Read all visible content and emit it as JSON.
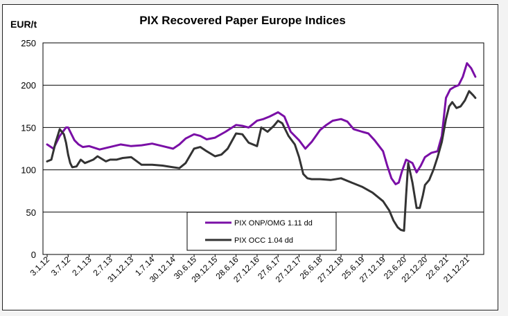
{
  "chart_data": {
    "type": "line",
    "title": "PIX Recovered Paper Europe Indices",
    "ylabel": "EUR/t",
    "xlabel": "",
    "ylim": [
      0,
      250
    ],
    "yticks": [
      0,
      50,
      100,
      150,
      200,
      250
    ],
    "grid": "horizontal",
    "legend_position": "bottom-center",
    "x_tick_labels": [
      "3.1.12",
      "3.7.12",
      "2.1.13",
      "2.7.13",
      "31.12.13",
      "1.7.14",
      "30.12.14",
      "30.6.15",
      "29.12.15",
      "28.6.16",
      "27.12.16",
      "27.6.17",
      "27.12.17",
      "26.6.18",
      "27.12.18",
      "25.6.19",
      "27.12.19",
      "23.6.20",
      "22.12.20",
      "22.6.21",
      "21.12.21"
    ],
    "series": [
      {
        "name": "PIX ONP/OMG 1.11 dd",
        "color": "#7a0fa6",
        "x": [
          0,
          0.3,
          0.6,
          0.9,
          1.0,
          1.1,
          1.3,
          1.5,
          1.7,
          2.0,
          2.5,
          3.0,
          3.5,
          4.0,
          4.5,
          5.0,
          5.5,
          6.0,
          6.3,
          6.6,
          7.0,
          7.3,
          7.6,
          8.0,
          8.5,
          9.0,
          9.3,
          9.6,
          10.0,
          10.3,
          10.6,
          11.0,
          11.3,
          11.6,
          12.0,
          12.3,
          12.6,
          13.0,
          13.3,
          13.6,
          14.0,
          14.3,
          14.6,
          15.0,
          15.3,
          15.6,
          16.0,
          16.2,
          16.4,
          16.6,
          16.75,
          16.9,
          17.1,
          17.4,
          17.6,
          17.8,
          18.0,
          18.3,
          18.6,
          18.8,
          19.0,
          19.2,
          19.4,
          19.6,
          19.8,
          20.0,
          20.2,
          20.4
        ],
        "values": [
          130,
          125,
          140,
          150,
          150,
          145,
          135,
          130,
          127,
          128,
          124,
          127,
          130,
          128,
          129,
          131,
          128,
          125,
          130,
          137,
          142,
          140,
          136,
          138,
          145,
          153,
          152,
          150,
          158,
          160,
          163,
          168,
          163,
          145,
          135,
          125,
          133,
          147,
          153,
          158,
          160,
          157,
          148,
          145,
          143,
          135,
          122,
          105,
          90,
          83,
          85,
          98,
          112,
          108,
          97,
          105,
          115,
          120,
          122,
          140,
          185,
          195,
          198,
          200,
          210,
          226,
          220,
          210
        ]
      },
      {
        "name": "PIX OCC 1.04 dd",
        "color": "#333333",
        "x": [
          0,
          0.2,
          0.4,
          0.6,
          0.8,
          0.9,
          1.0,
          1.1,
          1.2,
          1.4,
          1.6,
          1.8,
          2.0,
          2.2,
          2.4,
          2.8,
          3.0,
          3.3,
          3.6,
          4.0,
          4.5,
          5.0,
          5.5,
          6.0,
          6.3,
          6.6,
          7.0,
          7.3,
          7.6,
          8.0,
          8.3,
          8.6,
          9.0,
          9.3,
          9.6,
          10.0,
          10.2,
          10.5,
          10.8,
          11.0,
          11.2,
          11.5,
          11.8,
          12.0,
          12.2,
          12.4,
          12.6,
          13.0,
          13.5,
          14.0,
          14.5,
          15.0,
          15.5,
          16.0,
          16.3,
          16.5,
          16.7,
          16.85,
          17.0,
          17.1,
          17.2,
          17.4,
          17.6,
          17.75,
          17.9,
          18.0,
          18.2,
          18.4,
          18.6,
          18.8,
          19.0,
          19.15,
          19.3,
          19.5,
          19.7,
          19.9,
          20.1,
          20.3,
          20.4
        ],
        "values": [
          110,
          112,
          132,
          148,
          142,
          132,
          118,
          108,
          103,
          104,
          112,
          108,
          110,
          112,
          116,
          110,
          112,
          112,
          114,
          115,
          106,
          106,
          105,
          103,
          102,
          108,
          125,
          127,
          122,
          116,
          118,
          125,
          143,
          142,
          132,
          128,
          150,
          145,
          152,
          158,
          155,
          140,
          130,
          115,
          95,
          90,
          89,
          89,
          88,
          90,
          85,
          80,
          73,
          63,
          52,
          40,
          32,
          29,
          28,
          70,
          108,
          85,
          55,
          55,
          70,
          82,
          88,
          100,
          115,
          133,
          160,
          175,
          180,
          173,
          175,
          182,
          193,
          188,
          185
        ]
      }
    ]
  }
}
